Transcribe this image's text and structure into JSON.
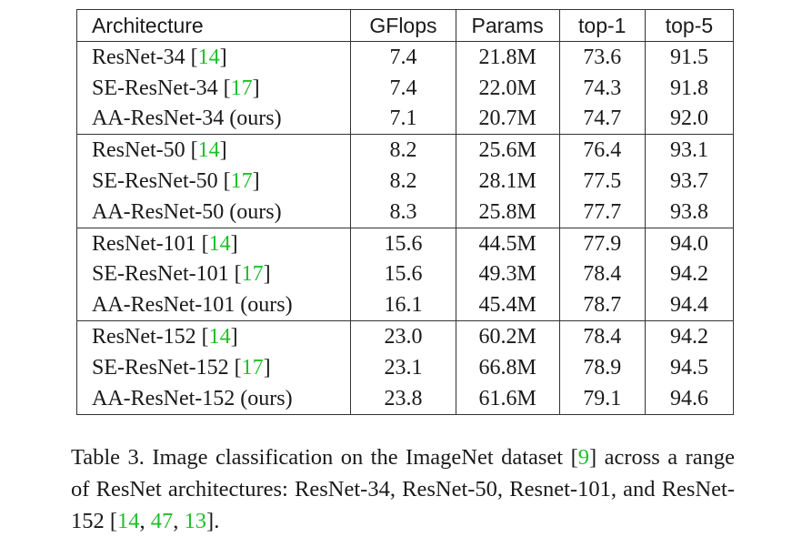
{
  "table": {
    "headers": [
      "Architecture",
      "GFlops",
      "Params",
      "top-1",
      "top-5"
    ],
    "groups": [
      {
        "rows": [
          {
            "arch": "ResNet-34",
            "ref": "14",
            "suffix": "",
            "gflops": "7.4",
            "params": "21.8M",
            "top1": "73.6",
            "top5": "91.5"
          },
          {
            "arch": "SE-ResNet-34",
            "ref": "17",
            "suffix": "",
            "gflops": "7.4",
            "params": "22.0M",
            "top1": "74.3",
            "top5": "91.8"
          },
          {
            "arch": "AA-ResNet-34 (ours)",
            "ref": "",
            "suffix": "",
            "gflops": "7.1",
            "params": "20.7M",
            "top1": "74.7",
            "top5": "92.0"
          }
        ]
      },
      {
        "rows": [
          {
            "arch": "ResNet-50",
            "ref": "14",
            "suffix": "",
            "gflops": "8.2",
            "params": "25.6M",
            "top1": "76.4",
            "top5": "93.1"
          },
          {
            "arch": "SE-ResNet-50",
            "ref": "17",
            "suffix": "",
            "gflops": "8.2",
            "params": "28.1M",
            "top1": "77.5",
            "top5": "93.7"
          },
          {
            "arch": "AA-ResNet-50 (ours)",
            "ref": "",
            "suffix": "",
            "gflops": "8.3",
            "params": "25.8M",
            "top1": "77.7",
            "top5": "93.8"
          }
        ]
      },
      {
        "rows": [
          {
            "arch": "ResNet-101",
            "ref": "14",
            "suffix": "",
            "gflops": "15.6",
            "params": "44.5M",
            "top1": "77.9",
            "top5": "94.0"
          },
          {
            "arch": "SE-ResNet-101",
            "ref": "17",
            "suffix": "",
            "gflops": "15.6",
            "params": "49.3M",
            "top1": "78.4",
            "top5": "94.2"
          },
          {
            "arch": "AA-ResNet-101 (ours)",
            "ref": "",
            "suffix": "",
            "gflops": "16.1",
            "params": "45.4M",
            "top1": "78.7",
            "top5": "94.4"
          }
        ]
      },
      {
        "rows": [
          {
            "arch": "ResNet-152",
            "ref": "14",
            "suffix": "",
            "gflops": "23.0",
            "params": "60.2M",
            "top1": "78.4",
            "top5": "94.2"
          },
          {
            "arch": "SE-ResNet-152",
            "ref": "17",
            "suffix": "",
            "gflops": "23.1",
            "params": "66.8M",
            "top1": "78.9",
            "top5": "94.5"
          },
          {
            "arch": "AA-ResNet-152 (ours)",
            "ref": "",
            "suffix": "",
            "gflops": "23.8",
            "params": "61.6M",
            "top1": "79.1",
            "top5": "94.6"
          }
        ]
      }
    ]
  },
  "caption": {
    "segments": [
      {
        "text": "Table 3. Image classification on the ImageNet dataset [",
        "ref": false
      },
      {
        "text": "9",
        "ref": true
      },
      {
        "text": "] across a range of ResNet architectures: ResNet-34, ResNet-50, Resnet-101, and ResNet-152 [",
        "ref": false
      },
      {
        "text": "14",
        "ref": true
      },
      {
        "text": ", ",
        "ref": false
      },
      {
        "text": "47",
        "ref": true
      },
      {
        "text": ", ",
        "ref": false
      },
      {
        "text": "13",
        "ref": true
      },
      {
        "text": "].",
        "ref": false
      }
    ]
  },
  "colors": {
    "reference_link": "#1fbf2b",
    "text": "#1a1a1a",
    "rule": "#333333"
  }
}
